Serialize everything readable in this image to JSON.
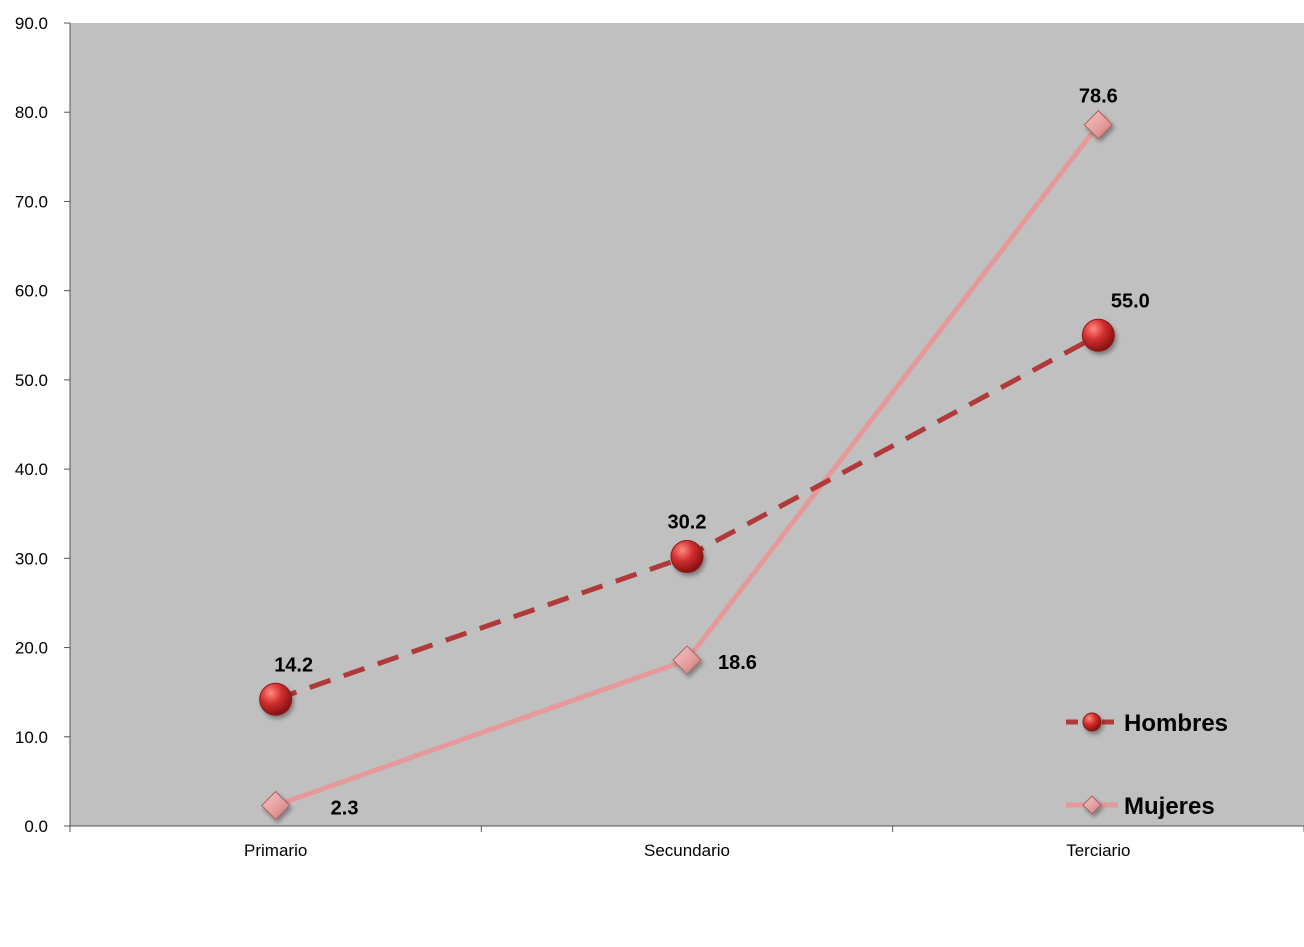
{
  "chart_data": {
    "type": "line",
    "title": "",
    "xlabel": "",
    "ylabel": "",
    "categories": [
      "Primario",
      "Secundario",
      "Terciario"
    ],
    "ylim": [
      0,
      90
    ],
    "yticks": [
      "0.0",
      "10.0",
      "20.0",
      "30.0",
      "40.0",
      "50.0",
      "60.0",
      "70.0",
      "80.0",
      "90.0"
    ],
    "grid": false,
    "legend_position": "bottom-right",
    "plot_background": "#c0c0c0",
    "series": [
      {
        "name": "Hombres",
        "values": [
          14.2,
          30.2,
          55.0
        ],
        "labels": [
          "14.2",
          "30.2",
          "55.0"
        ],
        "color": "#c0392b",
        "line_style": "dashed",
        "marker": "circle"
      },
      {
        "name": "Mujeres",
        "values": [
          2.3,
          18.6,
          78.6
        ],
        "labels": [
          "2.3",
          "18.6",
          "78.6"
        ],
        "color": "#e6999a",
        "line_style": "solid",
        "marker": "diamond"
      }
    ]
  }
}
